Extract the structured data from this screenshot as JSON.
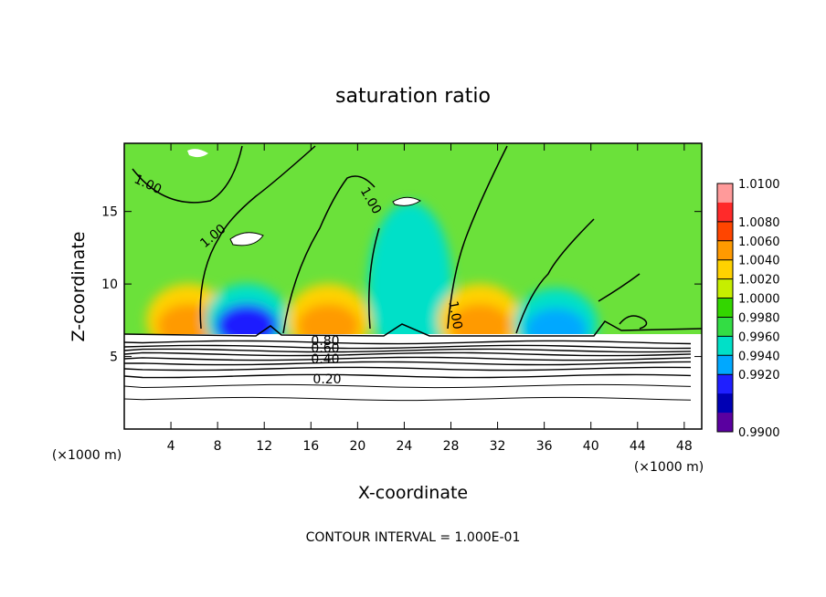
{
  "chart_data": {
    "type": "heatmap",
    "title": "saturation ratio",
    "xlabel": "X-coordinate",
    "ylabel": "Z-coordinate",
    "x_unit_left": "(×1000 m)",
    "x_unit_right": "(×1000 m)",
    "xlim": [
      0,
      49.5
    ],
    "ylim": [
      0,
      19.7
    ],
    "xticks": [
      "4",
      "8",
      "12",
      "16",
      "20",
      "24",
      "28",
      "32",
      "36",
      "40",
      "44",
      "48"
    ],
    "yticks": [
      "5",
      "10",
      "15"
    ],
    "contour_interval_text": "CONTOUR INTERVAL = 1.000E-01",
    "contour_labels": [
      "1.00",
      "1.00",
      "1.00",
      "1.00",
      "0.80",
      "0.60",
      "0.40",
      "0.20"
    ],
    "colorbar": {
      "levels": [
        "1.0100",
        "1.0080",
        "1.0060",
        "1.0040",
        "1.0020",
        "1.0000",
        "0.9980",
        "0.9960",
        "0.9940",
        "0.9920",
        "0.9900"
      ],
      "colors": [
        "#ff9a9a",
        "#ff2a2a",
        "#ff4500",
        "#ff9a00",
        "#ffd200",
        "#c6ee00",
        "#33d600",
        "#33dd44",
        "#00e0c8",
        "#00a8ff",
        "#1f1fff",
        "#0000b4",
        "#5a00a0"
      ]
    },
    "features": [
      {
        "x": 5.5,
        "z": 7.5,
        "value": "1.0060",
        "kind": "supersaturated"
      },
      {
        "x": 10.5,
        "z": 7.5,
        "value": "0.9920",
        "kind": "subsaturated"
      },
      {
        "x": 17.5,
        "z": 7.5,
        "value": "1.0060",
        "kind": "supersaturated"
      },
      {
        "x": 24.5,
        "z": 10,
        "value": "0.9960",
        "kind": "subsaturated"
      },
      {
        "x": 30.5,
        "z": 7.5,
        "value": "1.0060",
        "kind": "supersaturated"
      },
      {
        "x": 37,
        "z": 7.2,
        "value": "0.9940",
        "kind": "subsaturated"
      }
    ]
  }
}
